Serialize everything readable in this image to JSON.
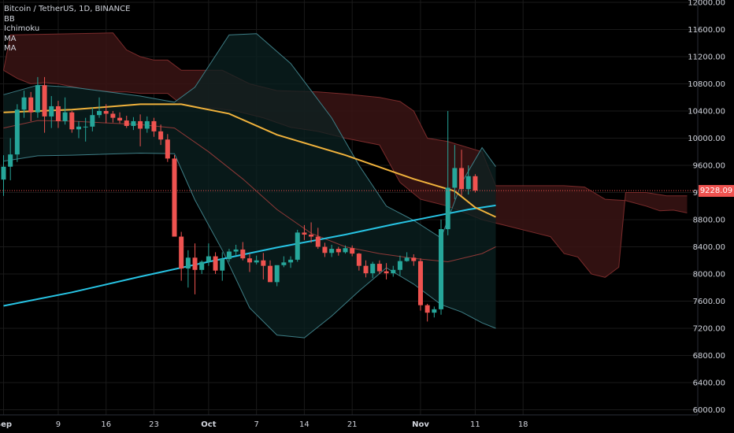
{
  "chart_data": {
    "type": "candlestick",
    "title": "Bitcoin / TetherUS, 1D, BINANCE",
    "indicators": [
      "BB",
      "Ichimoku",
      "MA",
      "MA"
    ],
    "last_price_label": "9228.09",
    "last_price": 9228.09,
    "y_ticks": [
      "12000.00",
      "11600.00",
      "11200.00",
      "10800.00",
      "10400.00",
      "10000.00",
      "9600.00",
      "9200.00",
      "8800.00",
      "8400.00",
      "8000.00",
      "7600.00",
      "7200.00",
      "6800.00",
      "6400.00",
      "6000.00"
    ],
    "x_ticks": [
      "Sep",
      "9",
      "16",
      "23",
      "Oct",
      "7",
      "14",
      "21",
      "Nov",
      "11",
      "18"
    ],
    "ylim": [
      6000,
      12000
    ],
    "colors": {
      "up": "#26a69a",
      "down": "#ef5350",
      "ma_fast": "#f0b23c",
      "ma_slow": "#27c4e4",
      "bb_band": "#3e7e86",
      "bb_fill": "#0b2222",
      "cloud": "#3a1414",
      "cloud_line": "#7a2b2b",
      "grid": "#1a1a1a",
      "axis_text": "#d1d4dc"
    },
    "candles": [
      {
        "o": 9390,
        "h": 9750,
        "l": 9150,
        "c": 9580
      },
      {
        "o": 9580,
        "h": 10000,
        "l": 9380,
        "c": 9760
      },
      {
        "o": 9760,
        "h": 10500,
        "l": 9650,
        "c": 10420
      },
      {
        "o": 10420,
        "h": 10700,
        "l": 10300,
        "c": 10600
      },
      {
        "o": 10600,
        "h": 10680,
        "l": 10250,
        "c": 10380
      },
      {
        "o": 10380,
        "h": 10900,
        "l": 10300,
        "c": 10780
      },
      {
        "o": 10780,
        "h": 10900,
        "l": 10080,
        "c": 10320
      },
      {
        "o": 10320,
        "h": 10620,
        "l": 10150,
        "c": 10470
      },
      {
        "o": 10470,
        "h": 10550,
        "l": 10150,
        "c": 10250
      },
      {
        "o": 10250,
        "h": 10600,
        "l": 10200,
        "c": 10380
      },
      {
        "o": 10380,
        "h": 10400,
        "l": 10080,
        "c": 10130
      },
      {
        "o": 10130,
        "h": 10250,
        "l": 10000,
        "c": 10170
      },
      {
        "o": 10170,
        "h": 10300,
        "l": 9950,
        "c": 10170
      },
      {
        "o": 10170,
        "h": 10450,
        "l": 10100,
        "c": 10340
      },
      {
        "o": 10340,
        "h": 10600,
        "l": 10300,
        "c": 10400
      },
      {
        "o": 10400,
        "h": 10500,
        "l": 10220,
        "c": 10360
      },
      {
        "o": 10360,
        "h": 10400,
        "l": 10230,
        "c": 10300
      },
      {
        "o": 10300,
        "h": 10380,
        "l": 10220,
        "c": 10260
      },
      {
        "o": 10260,
        "h": 10330,
        "l": 10150,
        "c": 10180
      },
      {
        "o": 10180,
        "h": 10310,
        "l": 10120,
        "c": 10250
      },
      {
        "o": 10250,
        "h": 10350,
        "l": 9880,
        "c": 10140
      },
      {
        "o": 10140,
        "h": 10320,
        "l": 10080,
        "c": 10250
      },
      {
        "o": 10250,
        "h": 10300,
        "l": 10020,
        "c": 10100
      },
      {
        "o": 10100,
        "h": 10200,
        "l": 9900,
        "c": 9980
      },
      {
        "o": 9980,
        "h": 10060,
        "l": 9650,
        "c": 9700
      },
      {
        "o": 9700,
        "h": 9750,
        "l": 8600,
        "c": 8550
      },
      {
        "o": 8550,
        "h": 8620,
        "l": 7900,
        "c": 8080
      },
      {
        "o": 8080,
        "h": 8350,
        "l": 7800,
        "c": 8240
      },
      {
        "o": 8240,
        "h": 8450,
        "l": 7700,
        "c": 8060
      },
      {
        "o": 8060,
        "h": 8200,
        "l": 8000,
        "c": 8180
      },
      {
        "o": 8180,
        "h": 8450,
        "l": 8120,
        "c": 8260
      },
      {
        "o": 8260,
        "h": 8320,
        "l": 8000,
        "c": 8050
      },
      {
        "o": 8050,
        "h": 8320,
        "l": 7900,
        "c": 8220
      },
      {
        "o": 8220,
        "h": 8370,
        "l": 8180,
        "c": 8330
      },
      {
        "o": 8330,
        "h": 8430,
        "l": 8270,
        "c": 8360
      },
      {
        "o": 8360,
        "h": 8470,
        "l": 8200,
        "c": 8230
      },
      {
        "o": 8230,
        "h": 8300,
        "l": 8030,
        "c": 8170
      },
      {
        "o": 8170,
        "h": 8270,
        "l": 8140,
        "c": 8200
      },
      {
        "o": 8200,
        "h": 8310,
        "l": 7920,
        "c": 8120
      },
      {
        "o": 8120,
        "h": 8200,
        "l": 7900,
        "c": 7880
      },
      {
        "o": 7880,
        "h": 8120,
        "l": 7820,
        "c": 8130
      },
      {
        "o": 8130,
        "h": 8260,
        "l": 8100,
        "c": 8170
      },
      {
        "o": 8170,
        "h": 8260,
        "l": 8090,
        "c": 8210
      },
      {
        "o": 8210,
        "h": 8650,
        "l": 8180,
        "c": 8610
      },
      {
        "o": 8610,
        "h": 8720,
        "l": 8500,
        "c": 8580
      },
      {
        "o": 8580,
        "h": 8760,
        "l": 8460,
        "c": 8550
      },
      {
        "o": 8550,
        "h": 8680,
        "l": 8370,
        "c": 8400
      },
      {
        "o": 8400,
        "h": 8460,
        "l": 8250,
        "c": 8310
      },
      {
        "o": 8310,
        "h": 8430,
        "l": 8250,
        "c": 8370
      },
      {
        "o": 8370,
        "h": 8400,
        "l": 8270,
        "c": 8320
      },
      {
        "o": 8320,
        "h": 8420,
        "l": 8300,
        "c": 8380
      },
      {
        "o": 8380,
        "h": 8420,
        "l": 8260,
        "c": 8300
      },
      {
        "o": 8300,
        "h": 8310,
        "l": 8050,
        "c": 8120
      },
      {
        "o": 8120,
        "h": 8200,
        "l": 7950,
        "c": 8010
      },
      {
        "o": 8010,
        "h": 8180,
        "l": 7940,
        "c": 8150
      },
      {
        "o": 8150,
        "h": 8200,
        "l": 8000,
        "c": 8040
      },
      {
        "o": 8040,
        "h": 8160,
        "l": 7920,
        "c": 8010
      },
      {
        "o": 8010,
        "h": 8120,
        "l": 7960,
        "c": 8060
      },
      {
        "o": 8060,
        "h": 8270,
        "l": 7980,
        "c": 8190
      },
      {
        "o": 8190,
        "h": 8320,
        "l": 8180,
        "c": 8240
      },
      {
        "o": 8240,
        "h": 8290,
        "l": 8120,
        "c": 8190
      },
      {
        "o": 8190,
        "h": 8230,
        "l": 7460,
        "c": 7540
      },
      {
        "o": 7540,
        "h": 7560,
        "l": 7300,
        "c": 7430
      },
      {
        "o": 7430,
        "h": 7520,
        "l": 7360,
        "c": 7480
      },
      {
        "o": 7480,
        "h": 8800,
        "l": 7400,
        "c": 8660
      },
      {
        "o": 8660,
        "h": 10400,
        "l": 8570,
        "c": 9270
      },
      {
        "o": 9270,
        "h": 9900,
        "l": 9100,
        "c": 9560
      },
      {
        "o": 9560,
        "h": 9830,
        "l": 9150,
        "c": 9250
      },
      {
        "o": 9250,
        "h": 9600,
        "l": 9170,
        "c": 9440
      },
      {
        "o": 9440,
        "h": 9470,
        "l": 9200,
        "c": 9228.09
      }
    ],
    "ma_fast": [
      [
        0,
        10380
      ],
      [
        10,
        10420
      ],
      [
        20,
        10500
      ],
      [
        26,
        10500
      ],
      [
        33,
        10360
      ],
      [
        40,
        10050
      ],
      [
        50,
        9750
      ],
      [
        60,
        9400
      ],
      [
        66,
        9220
      ],
      [
        69,
        8980
      ],
      [
        72,
        8840
      ]
    ],
    "ma_slow": [
      [
        0,
        7530
      ],
      [
        10,
        7730
      ],
      [
        20,
        7960
      ],
      [
        30,
        8180
      ],
      [
        40,
        8390
      ],
      [
        50,
        8580
      ],
      [
        57,
        8730
      ],
      [
        63,
        8850
      ],
      [
        68,
        8950
      ],
      [
        72,
        9010
      ]
    ],
    "bb_upper": [
      [
        0,
        10640
      ],
      [
        5,
        10780
      ],
      [
        10,
        10750
      ],
      [
        20,
        10620
      ],
      [
        25,
        10530
      ],
      [
        28,
        10750
      ],
      [
        33,
        11520
      ],
      [
        37,
        11540
      ],
      [
        42,
        11100
      ],
      [
        48,
        10300
      ],
      [
        52,
        9600
      ],
      [
        56,
        9000
      ],
      [
        60,
        8790
      ],
      [
        64,
        8530
      ],
      [
        67,
        9340
      ],
      [
        70,
        9860
      ],
      [
        72,
        9580
      ]
    ],
    "bb_mid": [
      [
        0,
        10150
      ],
      [
        5,
        10260
      ],
      [
        10,
        10250
      ],
      [
        20,
        10200
      ],
      [
        25,
        10150
      ],
      [
        30,
        9800
      ],
      [
        35,
        9400
      ],
      [
        40,
        8950
      ],
      [
        45,
        8600
      ],
      [
        50,
        8400
      ],
      [
        55,
        8300
      ],
      [
        60,
        8230
      ],
      [
        65,
        8180
      ],
      [
        70,
        8300
      ],
      [
        72,
        8400
      ]
    ],
    "bb_lower": [
      [
        0,
        9660
      ],
      [
        5,
        9740
      ],
      [
        10,
        9750
      ],
      [
        20,
        9780
      ],
      [
        25,
        9770
      ],
      [
        28,
        9090
      ],
      [
        32,
        8350
      ],
      [
        36,
        7500
      ],
      [
        40,
        7100
      ],
      [
        44,
        7060
      ],
      [
        48,
        7380
      ],
      [
        52,
        7750
      ],
      [
        56,
        8090
      ],
      [
        60,
        7850
      ],
      [
        64,
        7550
      ],
      [
        67,
        7440
      ],
      [
        70,
        7280
      ],
      [
        72,
        7200
      ]
    ],
    "cloud_a": [
      [
        0,
        11000
      ],
      [
        2,
        10880
      ],
      [
        4,
        10800
      ],
      [
        6,
        10820
      ],
      [
        8,
        10800
      ],
      [
        10,
        10760
      ],
      [
        12,
        10720
      ],
      [
        14,
        10700
      ],
      [
        16,
        10680
      ],
      [
        18,
        10680
      ],
      [
        20,
        10660
      ],
      [
        24,
        10660
      ],
      [
        26,
        10500
      ],
      [
        29,
        10440
      ],
      [
        31,
        10440
      ],
      [
        34,
        10400
      ],
      [
        38,
        10300
      ],
      [
        42,
        10160
      ],
      [
        46,
        10100
      ],
      [
        50,
        10000
      ],
      [
        55,
        9900
      ],
      [
        58,
        9350
      ],
      [
        61,
        9100
      ],
      [
        65,
        9000
      ],
      [
        70,
        8800
      ],
      [
        74,
        8700
      ],
      [
        78,
        8600
      ],
      [
        80,
        8550
      ],
      [
        82,
        8300
      ],
      [
        84,
        8250
      ],
      [
        86,
        8000
      ],
      [
        88,
        7950
      ],
      [
        90,
        8100
      ],
      [
        91,
        9200
      ],
      [
        94,
        9200
      ],
      [
        97,
        9150
      ],
      [
        100,
        9150
      ]
    ],
    "cloud_b": [
      [
        0,
        11000
      ],
      [
        1,
        11520
      ],
      [
        16,
        11550
      ],
      [
        18,
        11300
      ],
      [
        20,
        11200
      ],
      [
        22,
        11150
      ],
      [
        24,
        11150
      ],
      [
        26,
        11000
      ],
      [
        32,
        11000
      ],
      [
        36,
        10800
      ],
      [
        40,
        10700
      ],
      [
        46,
        10680
      ],
      [
        50,
        10650
      ],
      [
        55,
        10600
      ],
      [
        58,
        10540
      ],
      [
        60,
        10400
      ],
      [
        62,
        10000
      ],
      [
        65,
        9950
      ],
      [
        70,
        9800
      ],
      [
        72,
        9300
      ],
      [
        74,
        9300
      ],
      [
        82,
        9300
      ],
      [
        85,
        9280
      ],
      [
        88,
        9100
      ],
      [
        91,
        9080
      ],
      [
        94,
        9000
      ],
      [
        96,
        8930
      ],
      [
        98,
        8940
      ],
      [
        100,
        8900
      ]
    ]
  }
}
